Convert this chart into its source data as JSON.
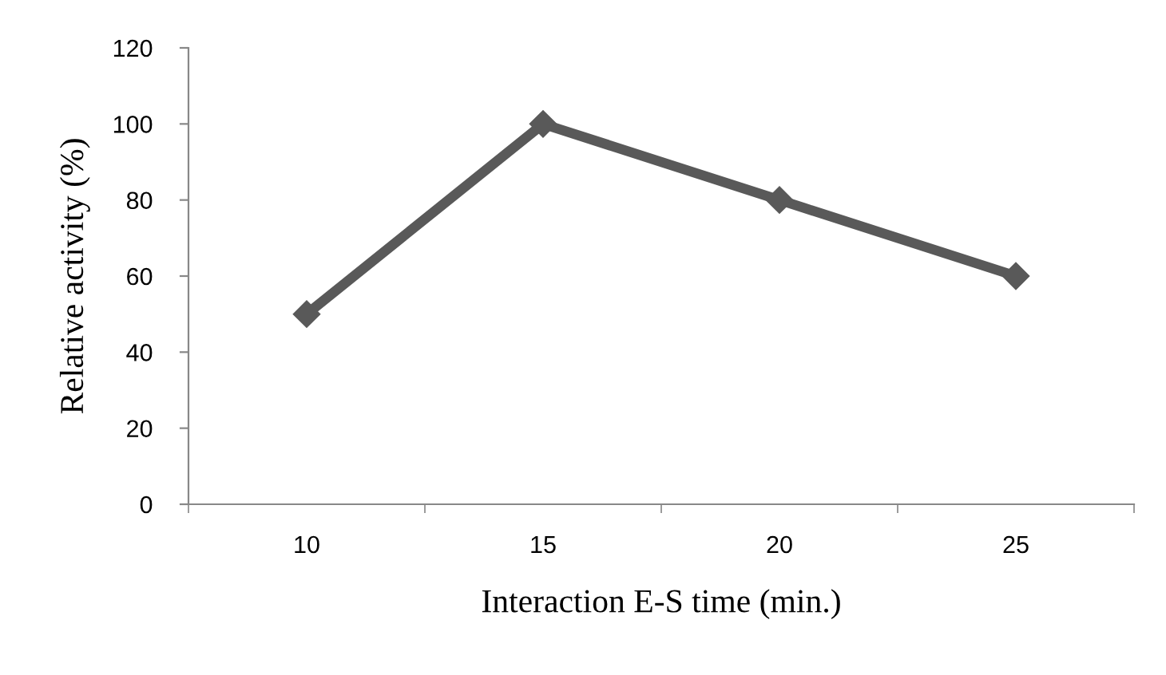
{
  "chart_data": {
    "type": "line",
    "xlabel": "Interaction E-S time (min.)",
    "ylabel": "Relative activity (%)",
    "categories": [
      "10",
      "15",
      "20",
      "25"
    ],
    "series": [
      {
        "color": "#595959",
        "values": [
          50,
          100,
          80,
          60
        ]
      }
    ],
    "ylim": [
      0,
      120
    ],
    "yticks": [
      0,
      20,
      40,
      60,
      80,
      100,
      120
    ],
    "grid": false,
    "legend": false,
    "marker": "diamond",
    "line_style": "solid"
  }
}
